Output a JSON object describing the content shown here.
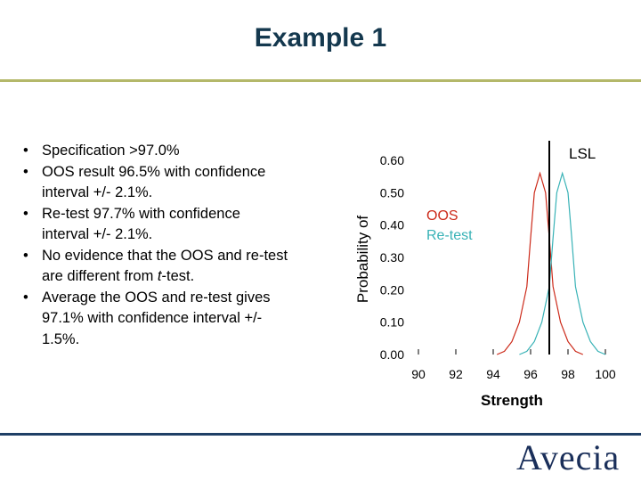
{
  "slide": {
    "title": "Example 1",
    "logo_text": "Avecia",
    "colors": {
      "title": "#14384e",
      "rule_top": "#b4b86a",
      "rule_bottom": "#1f3f66",
      "logo": "#1a2f5a"
    }
  },
  "bullets": [
    {
      "text": "Specification >97.0%"
    },
    {
      "text": "OOS result 96.5% with confidence interval +/- 2.1%."
    },
    {
      "text": "Re-test 97.7% with confidence interval +/- 2.1%."
    },
    {
      "text": "No evidence that the OOS and re-test are different from ",
      "italic": "t",
      "tail": "-test."
    },
    {
      "text": "Average the OOS and re-test gives 97.1% with confidence interval +/- 1.5%."
    }
  ],
  "chart_data": {
    "type": "line",
    "xlabel": "Strength",
    "ylabel": "Probability of",
    "xlim": [
      90,
      100
    ],
    "ylim": [
      0,
      0.6
    ],
    "xticks": [
      "90",
      "92",
      "94",
      "96",
      "98",
      "100"
    ],
    "yticks": [
      "0.00",
      "0.10",
      "0.20",
      "0.30",
      "0.40",
      "0.50",
      "0.60"
    ],
    "grid": false,
    "reference_line": {
      "label": "LSL",
      "x": 97.0
    },
    "series": [
      {
        "name": "OOS",
        "color": "#cc2a1a",
        "x": [
          94.2,
          94.6,
          95.0,
          95.4,
          95.8,
          96.0,
          96.2,
          96.5,
          96.8,
          97.0,
          97.2,
          97.6,
          98.0,
          98.4,
          98.8
        ],
        "y": [
          0.0,
          0.01,
          0.04,
          0.1,
          0.21,
          0.36,
          0.5,
          0.56,
          0.5,
          0.36,
          0.21,
          0.1,
          0.04,
          0.01,
          0.0
        ]
      },
      {
        "name": "Re-test",
        "color": "#38b2b6",
        "x": [
          95.4,
          95.8,
          96.2,
          96.6,
          97.0,
          97.2,
          97.4,
          97.7,
          98.0,
          98.2,
          98.4,
          98.8,
          99.2,
          99.6,
          100.0
        ],
        "y": [
          0.0,
          0.01,
          0.04,
          0.1,
          0.21,
          0.36,
          0.5,
          0.56,
          0.5,
          0.36,
          0.21,
          0.1,
          0.04,
          0.01,
          0.0
        ]
      }
    ]
  }
}
